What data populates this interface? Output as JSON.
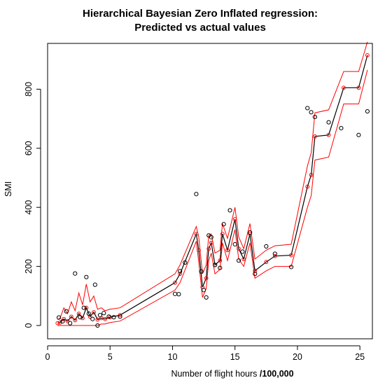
{
  "chart_data": {
    "type": "line",
    "title_line1": "Hierarchical Bayesian Zero Inflated regression:",
    "title_line2": "Predicted vs actual values",
    "xlabel_prefix": "Number of flight hours ",
    "xlabel_suffix": "/100,000",
    "ylabel": "SMI",
    "xlim": [
      0,
      26
    ],
    "ylim": [
      -45,
      955
    ],
    "xticks": [
      0,
      5,
      10,
      15,
      20,
      25
    ],
    "yticks": [
      0,
      200,
      400,
      600,
      800
    ],
    "colors": {
      "predicted": "#000000",
      "interval": "#ff0000",
      "observed": "#000000",
      "predicted_points": "#ff0000"
    },
    "series": [
      {
        "role": "predicted",
        "x": [
          0.8,
          1.0,
          1.3,
          1.6,
          1.9,
          2.2,
          2.5,
          2.8,
          3.1,
          3.4,
          3.7,
          4.0,
          4.3,
          4.6,
          5.0,
          5.8,
          10.2,
          10.6,
          11.9,
          12.1,
          12.4,
          12.7,
          12.9,
          13.1,
          13.4,
          13.8,
          14.0,
          14.4,
          15.0,
          15.3,
          15.7,
          16.2,
          16.6,
          17.5,
          18.2,
          19.5,
          20.8,
          21.1,
          21.4,
          22.5,
          23.7,
          24.9,
          25.6
        ],
        "y": [
          8,
          10,
          22,
          15,
          30,
          18,
          40,
          25,
          60,
          30,
          45,
          20,
          25,
          22,
          28,
          35,
          145,
          175,
          310,
          255,
          130,
          160,
          260,
          280,
          205,
          220,
          310,
          255,
          360,
          260,
          225,
          310,
          185,
          215,
          235,
          238,
          470,
          510,
          640,
          645,
          805,
          805,
          915
        ]
      },
      {
        "role": "upper interval",
        "x": [
          0.8,
          1.0,
          1.3,
          1.6,
          1.9,
          2.2,
          2.5,
          2.8,
          3.1,
          3.4,
          3.7,
          4.0,
          4.3,
          4.6,
          5.0,
          5.8,
          10.2,
          10.6,
          11.9,
          12.1,
          12.4,
          12.7,
          12.9,
          13.1,
          13.4,
          13.8,
          14.0,
          14.4,
          15.0,
          15.3,
          15.7,
          16.2,
          16.6,
          17.5,
          18.2,
          19.5,
          20.8,
          21.1,
          21.4,
          22.5,
          23.7,
          24.9,
          25.6
        ],
        "y": [
          20,
          25,
          60,
          40,
          80,
          50,
          110,
          70,
          140,
          80,
          100,
          55,
          60,
          50,
          55,
          60,
          175,
          205,
          335,
          300,
          175,
          205,
          305,
          310,
          245,
          255,
          345,
          295,
          400,
          300,
          260,
          345,
          225,
          255,
          270,
          275,
          540,
          585,
          720,
          730,
          860,
          860,
          960
        ]
      },
      {
        "role": "lower interval",
        "x": [
          0.8,
          1.0,
          1.3,
          1.6,
          1.9,
          2.2,
          2.5,
          2.8,
          3.1,
          3.4,
          3.7,
          4.0,
          4.3,
          4.6,
          5.0,
          5.8,
          10.2,
          10.6,
          11.9,
          12.1,
          12.4,
          12.7,
          12.9,
          13.1,
          13.4,
          13.8,
          14.0,
          14.4,
          15.0,
          15.3,
          15.7,
          16.2,
          16.6,
          17.5,
          18.2,
          19.5,
          20.8,
          21.1,
          21.4,
          22.5,
          23.7,
          24.9,
          25.6
        ],
        "y": [
          0,
          0,
          0,
          0,
          0,
          0,
          0,
          0,
          0,
          0,
          0,
          0,
          5,
          5,
          10,
          15,
          120,
          145,
          285,
          215,
          95,
          125,
          220,
          245,
          175,
          190,
          280,
          220,
          325,
          225,
          200,
          280,
          160,
          185,
          200,
          200,
          400,
          440,
          560,
          570,
          750,
          750,
          865
        ]
      }
    ],
    "points": [
      {
        "x": 0.9,
        "y": 27
      },
      {
        "x": 1.2,
        "y": 14
      },
      {
        "x": 1.5,
        "y": 48
      },
      {
        "x": 1.8,
        "y": 8
      },
      {
        "x": 2.2,
        "y": 176
      },
      {
        "x": 2.6,
        "y": 28
      },
      {
        "x": 2.9,
        "y": 60
      },
      {
        "x": 3.1,
        "y": 164
      },
      {
        "x": 3.3,
        "y": 40
      },
      {
        "x": 3.6,
        "y": 22
      },
      {
        "x": 3.8,
        "y": 138
      },
      {
        "x": 4.0,
        "y": 0
      },
      {
        "x": 4.2,
        "y": 35
      },
      {
        "x": 4.5,
        "y": 42
      },
      {
        "x": 4.9,
        "y": 30
      },
      {
        "x": 5.3,
        "y": 28
      },
      {
        "x": 5.8,
        "y": 30
      },
      {
        "x": 10.2,
        "y": 107
      },
      {
        "x": 10.5,
        "y": 106
      },
      {
        "x": 10.6,
        "y": 184
      },
      {
        "x": 11.0,
        "y": 213
      },
      {
        "x": 11.9,
        "y": 445
      },
      {
        "x": 12.3,
        "y": 183
      },
      {
        "x": 12.5,
        "y": 120
      },
      {
        "x": 12.7,
        "y": 95
      },
      {
        "x": 12.9,
        "y": 305
      },
      {
        "x": 13.1,
        "y": 299
      },
      {
        "x": 13.4,
        "y": 205
      },
      {
        "x": 13.8,
        "y": 195
      },
      {
        "x": 14.1,
        "y": 343
      },
      {
        "x": 14.6,
        "y": 390
      },
      {
        "x": 15.0,
        "y": 275
      },
      {
        "x": 15.3,
        "y": 220
      },
      {
        "x": 15.6,
        "y": 250
      },
      {
        "x": 16.2,
        "y": 315
      },
      {
        "x": 16.6,
        "y": 175
      },
      {
        "x": 17.5,
        "y": 268
      },
      {
        "x": 18.2,
        "y": 243
      },
      {
        "x": 19.5,
        "y": 198
      },
      {
        "x": 20.8,
        "y": 736
      },
      {
        "x": 21.1,
        "y": 722
      },
      {
        "x": 21.4,
        "y": 706
      },
      {
        "x": 22.5,
        "y": 688
      },
      {
        "x": 23.5,
        "y": 668
      },
      {
        "x": 24.9,
        "y": 645
      },
      {
        "x": 25.6,
        "y": 725
      }
    ],
    "grid": false
  }
}
